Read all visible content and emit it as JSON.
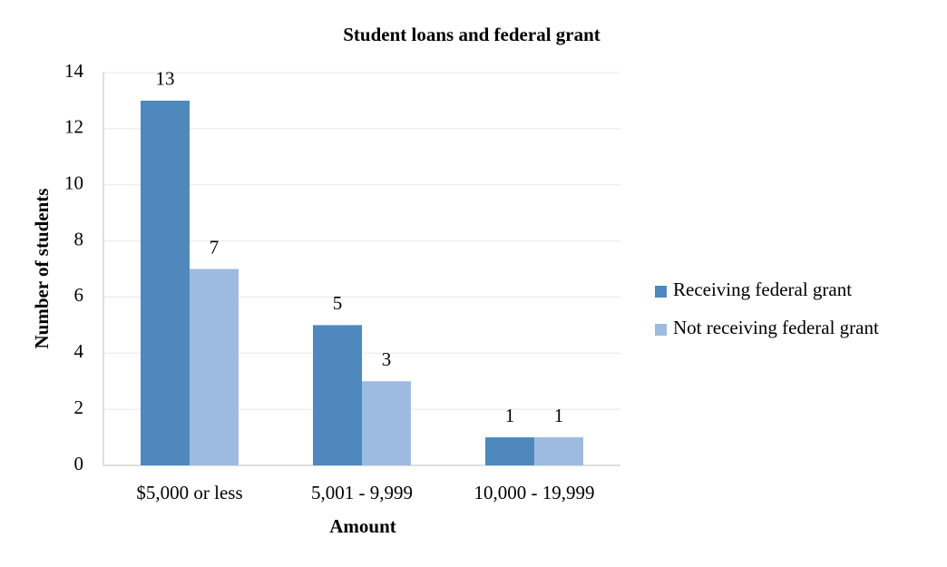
{
  "chart_data": {
    "type": "bar",
    "title": "Student loans and federal grant",
    "x_label": "Amount",
    "y_label": "Number of students",
    "categories": [
      "$5,000 or less",
      "5,001 - 9,999",
      "10,000 - 19,999"
    ],
    "series": [
      {
        "name": "Receiving federal grant",
        "color": "#4f88bd",
        "values": [
          13,
          5,
          1
        ]
      },
      {
        "name": "Not receiving federal grant",
        "color": "#9dbbe0",
        "values": [
          7,
          3,
          1
        ]
      }
    ],
    "ylim": [
      0,
      14
    ],
    "yticks": [
      0,
      2,
      4,
      6,
      8,
      10,
      12,
      14
    ],
    "grid": true,
    "legend": "right",
    "data_labels": true
  }
}
